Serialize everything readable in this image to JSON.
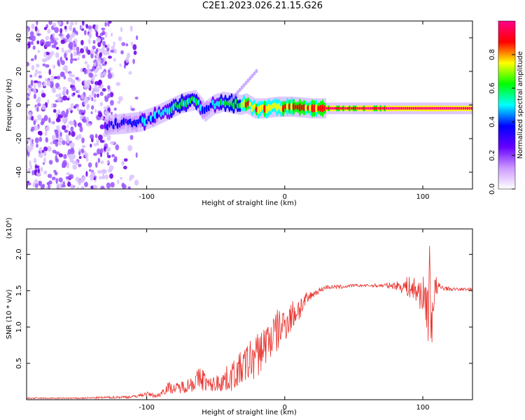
{
  "figure_title": "C2E1.2023.026.21.15.G26",
  "chart_data": [
    {
      "type": "heatmap",
      "xlabel": "Height of straight line (km)",
      "ylabel": "Frequency (Hz)",
      "xlim": [
        -187,
        136
      ],
      "ylim": [
        -50,
        50
      ],
      "x_ticks": [
        -100,
        0,
        100
      ],
      "y_ticks": [
        -40,
        -20,
        0,
        20,
        40
      ],
      "colorbar": {
        "label": "Normalized spectral amplitude",
        "range": [
          0,
          1
        ],
        "ticks": [
          "0.0",
          "0.2",
          "0.4",
          "0.6",
          "0.8"
        ],
        "colors": [
          "#ffffff",
          "#cc99ff",
          "#6600ff",
          "#0000ff",
          "#00ffff",
          "#00ff00",
          "#ffff00",
          "#ff0000",
          "#ff0088"
        ]
      },
      "ridge": {
        "x": [
          -130,
          -115,
          -105,
          -95,
          -85,
          -75,
          -65,
          -58,
          -52,
          -45,
          -38,
          -32,
          -28,
          -22,
          -15,
          -5,
          5,
          20,
          40,
          60,
          80,
          100,
          120,
          136
        ],
        "frequency": [
          -12,
          -11,
          -10,
          -7,
          -3,
          1,
          3,
          -4,
          0,
          2,
          1,
          0,
          1,
          -2,
          -2,
          -1,
          -1,
          -2,
          -2,
          -2,
          -2,
          -2,
          -2,
          -2
        ],
        "amplitude": [
          0.25,
          0.25,
          0.3,
          0.4,
          0.5,
          0.55,
          0.55,
          0.3,
          0.45,
          0.5,
          0.55,
          0.6,
          0.8,
          0.7,
          0.75,
          0.7,
          0.75,
          0.8,
          0.85,
          0.9,
          0.92,
          0.95,
          0.95,
          0.95
        ]
      },
      "noise_region_x": [
        -187,
        -125
      ]
    },
    {
      "type": "line",
      "xlabel": "Height of straight line (km)",
      "ylabel": "SNR (10 * v/v)",
      "y_scale_label": "(x10⁴)",
      "xlim": [
        -187,
        136
      ],
      "ylim": [
        0,
        2.35
      ],
      "x_ticks": [
        -100,
        0,
        100
      ],
      "y_ticks": [
        0.5,
        1.0,
        1.5,
        2.0
      ],
      "series": [
        {
          "color": "#e8312c",
          "x": [
            -187,
            -150,
            -110,
            -100,
            -92,
            -85,
            -80,
            -70,
            -60,
            -55,
            -50,
            -40,
            -30,
            -25,
            -20,
            -15,
            -10,
            -5,
            0,
            5,
            10,
            20,
            30,
            40,
            50,
            60,
            70,
            80,
            90,
            95,
            100,
            103,
            106,
            108,
            112,
            120,
            128,
            136
          ],
          "y": [
            0.02,
            0.02,
            0.04,
            0.08,
            0.05,
            0.17,
            0.15,
            0.2,
            0.3,
            0.2,
            0.22,
            0.3,
            0.45,
            0.55,
            0.6,
            0.75,
            0.85,
            0.95,
            1.05,
            1.15,
            1.25,
            1.45,
            1.55,
            1.55,
            1.57,
            1.57,
            1.57,
            1.57,
            1.55,
            1.5,
            1.45,
            1.3,
            0.9,
            1.5,
            1.55,
            1.52,
            1.52,
            1.52
          ],
          "spread": [
            0.01,
            0.01,
            0.02,
            0.03,
            0.03,
            0.08,
            0.07,
            0.1,
            0.18,
            0.1,
            0.12,
            0.2,
            0.25,
            0.3,
            0.32,
            0.3,
            0.32,
            0.3,
            0.25,
            0.22,
            0.2,
            0.05,
            0.03,
            0.03,
            0.02,
            0.02,
            0.03,
            0.05,
            0.15,
            0.2,
            0.25,
            0.4,
            0.6,
            0.3,
            0.05,
            0.02,
            0.02,
            0.02
          ]
        }
      ]
    }
  ]
}
